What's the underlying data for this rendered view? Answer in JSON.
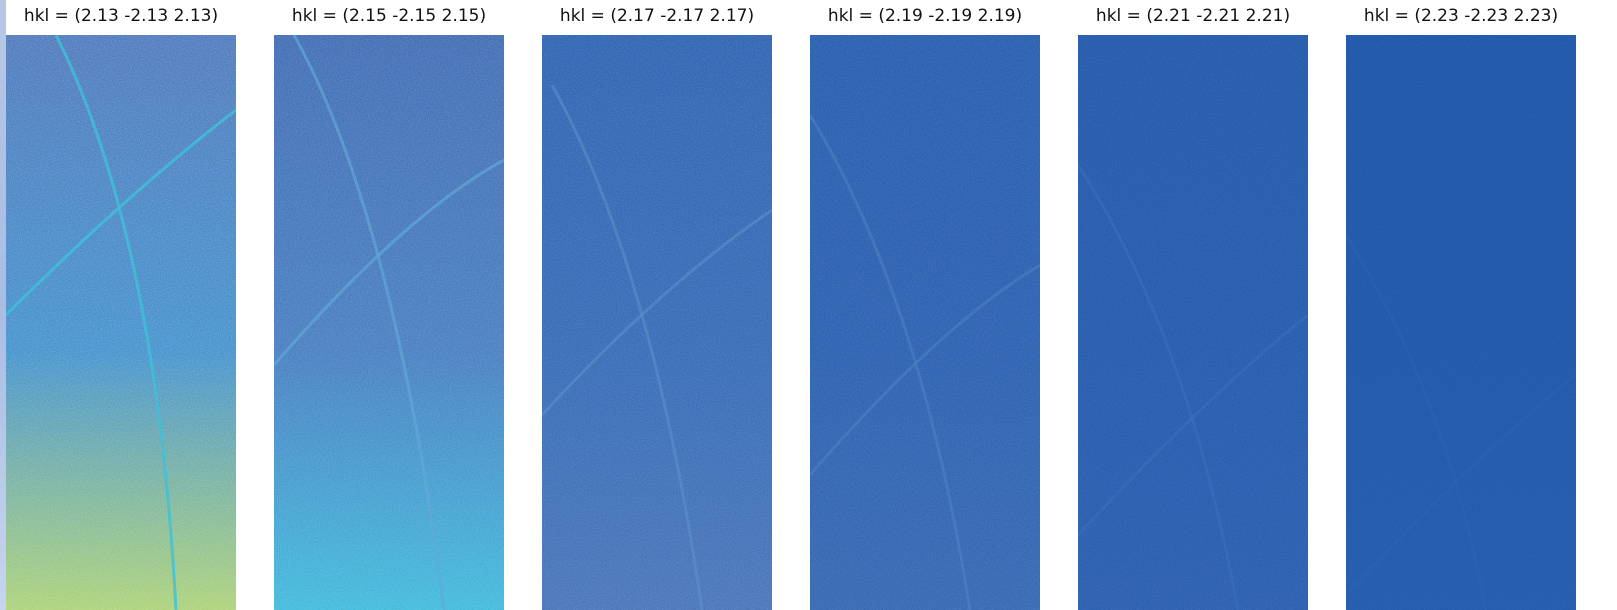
{
  "panels": [
    {
      "title": "hkl =  (2.13 -2.13 2.13)",
      "top": "#3a6ab4",
      "mid": "#2f86c8",
      "bottom": "#a3cd6a",
      "accent": "#3fc1d8"
    },
    {
      "title": "hkl =  (2.15 -2.15 2.15)",
      "top": "#2e5fae",
      "mid": "#3672bb",
      "bottom": "#2fb4d9",
      "accent": "#63a9d9"
    },
    {
      "title": "hkl =  (2.17 -2.17 2.17)",
      "top": "#1f58ad",
      "mid": "#2660b1",
      "bottom": "#3a6ab4",
      "accent": "#5d91cc"
    },
    {
      "title": "hkl =  (2.19 -2.19 2.19)",
      "top": "#1c55ab",
      "mid": "#1f58ad",
      "bottom": "#2a5fae",
      "accent": "#4f84c6"
    },
    {
      "title": "hkl =  (2.21 -2.21 2.21)",
      "top": "#1a53a9",
      "mid": "#1c55ab",
      "bottom": "#2158ac",
      "accent": "#3f73bd"
    },
    {
      "title": "hkl =  (2.23 -2.23 2.23)",
      "top": "#1a53a9",
      "mid": "#1a53a9",
      "bottom": "#1d56ab",
      "accent": "#2f66b4"
    }
  ],
  "colors": {
    "background": "#ffffff",
    "title_text": "#111111"
  }
}
